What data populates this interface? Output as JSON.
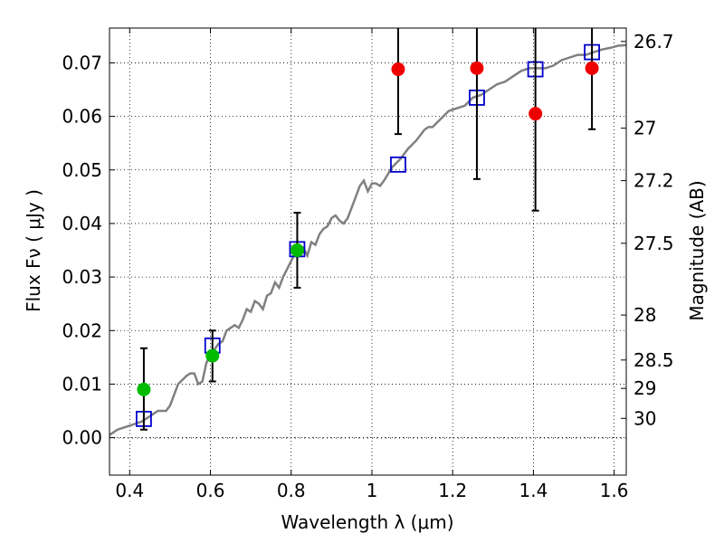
{
  "chart_data": {
    "type": "scatter",
    "title": "",
    "xlabel": "Wavelength  λ (μm)",
    "ylabel": "Flux  Fν  ( μJy )",
    "ylabel_right": "Magnitude (AB)",
    "xlim": [
      0.35,
      1.63
    ],
    "ylim": [
      -0.007,
      0.0765
    ],
    "grid": true,
    "x_ticks": [
      {
        "value": 0.4,
        "label": "0.4"
      },
      {
        "value": 0.6,
        "label": "0.6"
      },
      {
        "value": 0.8,
        "label": "0.8"
      },
      {
        "value": 1.0,
        "label": "1"
      },
      {
        "value": 1.2,
        "label": "1.2"
      },
      {
        "value": 1.4,
        "label": "1.4"
      },
      {
        "value": 1.6,
        "label": "1.6"
      }
    ],
    "y_ticks": [
      {
        "value": 0.0,
        "label": "0.00"
      },
      {
        "value": 0.01,
        "label": "0.01"
      },
      {
        "value": 0.02,
        "label": "0.02"
      },
      {
        "value": 0.03,
        "label": "0.03"
      },
      {
        "value": 0.04,
        "label": "0.04"
      },
      {
        "value": 0.05,
        "label": "0.05"
      },
      {
        "value": 0.06,
        "label": "0.06"
      },
      {
        "value": 0.07,
        "label": "0.07"
      }
    ],
    "right_ticks": [
      {
        "flux": 0.074,
        "label": "26.7"
      },
      {
        "flux": 0.0578,
        "label": "27"
      },
      {
        "flux": 0.048,
        "label": "27.2"
      },
      {
        "flux": 0.0363,
        "label": "27.5"
      },
      {
        "flux": 0.0229,
        "label": "28"
      },
      {
        "flux": 0.0145,
        "label": "28.5"
      },
      {
        "flux": 0.0092,
        "label": "29"
      },
      {
        "flux": 0.0036,
        "label": "30"
      }
    ],
    "series": [
      {
        "color": "#808080",
        "kind": "line",
        "x": [
          0.35,
          0.37,
          0.39,
          0.41,
          0.43,
          0.45,
          0.47,
          0.49,
          0.5,
          0.52,
          0.54,
          0.55,
          0.56,
          0.57,
          0.58,
          0.59,
          0.6,
          0.61,
          0.62,
          0.63,
          0.64,
          0.65,
          0.66,
          0.67,
          0.68,
          0.69,
          0.7,
          0.71,
          0.72,
          0.73,
          0.74,
          0.75,
          0.76,
          0.77,
          0.78,
          0.79,
          0.8,
          0.81,
          0.82,
          0.83,
          0.84,
          0.85,
          0.86,
          0.87,
          0.88,
          0.89,
          0.9,
          0.91,
          0.92,
          0.93,
          0.94,
          0.95,
          0.96,
          0.97,
          0.98,
          0.99,
          1.0,
          1.01,
          1.02,
          1.03,
          1.05,
          1.07,
          1.09,
          1.11,
          1.12,
          1.13,
          1.14,
          1.15,
          1.17,
          1.19,
          1.21,
          1.23,
          1.25,
          1.27,
          1.29,
          1.31,
          1.33,
          1.35,
          1.37,
          1.39,
          1.41,
          1.43,
          1.45,
          1.47,
          1.49,
          1.51,
          1.53,
          1.55,
          1.57,
          1.59,
          1.61,
          1.63
        ],
        "y": [
          0.0005,
          0.0015,
          0.002,
          0.0025,
          0.003,
          0.004,
          0.005,
          0.005,
          0.006,
          0.01,
          0.0115,
          0.012,
          0.012,
          0.01,
          0.0105,
          0.014,
          0.0155,
          0.0165,
          0.0175,
          0.018,
          0.02,
          0.0205,
          0.021,
          0.0205,
          0.022,
          0.024,
          0.0235,
          0.0255,
          0.025,
          0.024,
          0.0265,
          0.027,
          0.029,
          0.028,
          0.03,
          0.0315,
          0.033,
          0.0345,
          0.035,
          0.0355,
          0.034,
          0.0365,
          0.036,
          0.038,
          0.039,
          0.0395,
          0.041,
          0.0415,
          0.0405,
          0.04,
          0.041,
          0.043,
          0.045,
          0.047,
          0.048,
          0.046,
          0.0475,
          0.0475,
          0.047,
          0.048,
          0.0505,
          0.052,
          0.054,
          0.0555,
          0.0565,
          0.0575,
          0.058,
          0.058,
          0.0595,
          0.061,
          0.0615,
          0.062,
          0.0635,
          0.064,
          0.065,
          0.066,
          0.0665,
          0.0675,
          0.0685,
          0.069,
          0.069,
          0.069,
          0.0695,
          0.0705,
          0.071,
          0.0715,
          0.0715,
          0.072,
          0.0725,
          0.0728,
          0.0732,
          0.0733
        ]
      },
      {
        "color": "#0000cc",
        "kind": "open-square",
        "x": [
          0.435,
          0.605,
          0.815,
          1.065,
          1.26,
          1.405,
          1.545
        ],
        "y": [
          0.0035,
          0.0172,
          0.0352,
          0.051,
          0.0635,
          0.0688,
          0.072
        ]
      },
      {
        "color": "#00bb00",
        "kind": "filled-circle",
        "x": [
          0.435,
          0.605,
          0.815
        ],
        "y": [
          0.009,
          0.0153,
          0.035
        ],
        "err_low": [
          0.0015,
          0.0105,
          0.028
        ],
        "err_high": [
          0.0167,
          0.02,
          0.042
        ]
      },
      {
        "color": "#ee0000",
        "kind": "filled-circle",
        "x": [
          1.065,
          1.26,
          1.405,
          1.545
        ],
        "y": [
          0.0688,
          0.069,
          0.0605,
          0.069
        ],
        "err_low": [
          0.0567,
          0.0483,
          0.0424,
          0.0576
        ],
        "err_high": [
          0.078,
          0.078,
          0.078,
          0.078
        ]
      }
    ]
  }
}
